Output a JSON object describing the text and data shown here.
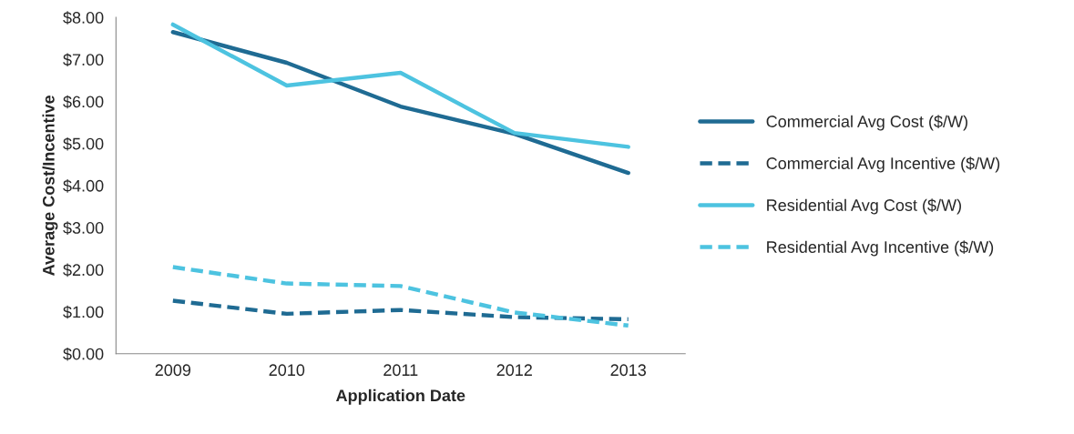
{
  "chart_data": {
    "type": "line",
    "xlabel": "Application Date",
    "ylabel": "Average Cost/Incentive",
    "categories": [
      "2009",
      "2010",
      "2011",
      "2012",
      "2013"
    ],
    "series": [
      {
        "name": "Commercial Avg Cost ($/W)",
        "color": "#1f6b93",
        "line_style": "solid",
        "values": [
          7.65,
          6.92,
          5.88,
          5.23,
          4.3
        ]
      },
      {
        "name": "Commercial Avg Incentive ($/W)",
        "color": "#1f6b93",
        "line_style": "dashed",
        "values": [
          1.26,
          0.95,
          1.04,
          0.87,
          0.82
        ]
      },
      {
        "name": "Residential Avg Cost ($/W)",
        "color": "#4dc3e0",
        "line_style": "solid",
        "values": [
          7.83,
          6.38,
          6.68,
          5.25,
          4.92
        ]
      },
      {
        "name": "Residential Avg Incentive ($/W)",
        "color": "#4dc3e0",
        "line_style": "dashed",
        "values": [
          2.06,
          1.67,
          1.61,
          0.98,
          0.67
        ]
      }
    ],
    "ylim": [
      0,
      8
    ],
    "yticks": [
      {
        "value": 0,
        "label": "$0.00"
      },
      {
        "value": 1,
        "label": "$1.00"
      },
      {
        "value": 2,
        "label": "$2.00"
      },
      {
        "value": 3,
        "label": "$3.00"
      },
      {
        "value": 4,
        "label": "$4.00"
      },
      {
        "value": 5,
        "label": "$5.00"
      },
      {
        "value": 6,
        "label": "$6.00"
      },
      {
        "value": 7,
        "label": "$7.00"
      },
      {
        "value": 8,
        "label": "$8.00"
      }
    ],
    "grid": false,
    "legend": "right",
    "marker": "none"
  }
}
